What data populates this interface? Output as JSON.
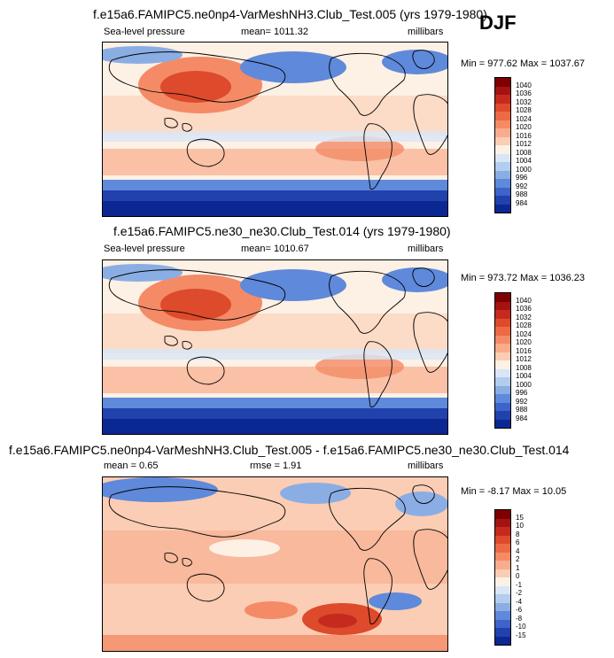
{
  "season": "DJF",
  "panels": [
    {
      "title": "f.e15a6.FAMIPC5.ne0np4-VarMeshNH3.Club_Test.005 (yrs 1979-1980)",
      "left_label": "Sea-level pressure",
      "center_label": "mean= 1011.32",
      "right_label": "millibars",
      "minmax": "Min = 977.62 Max = 1037.67"
    },
    {
      "title": "f.e15a6.FAMIPC5.ne30_ne30.Club_Test.014 (yrs 1979-1980)",
      "left_label": "Sea-level pressure",
      "center_label": "mean= 1010.67",
      "right_label": "millibars",
      "minmax": "Min = 973.72 Max = 1036.23"
    },
    {
      "title": "f.e15a6.FAMIPC5.ne0np4-VarMeshNH3.Club_Test.005 - f.e15a6.FAMIPC5.ne30_ne30.Club_Test.014",
      "left_label": "mean =   0.65",
      "center_label": "rmse =   1.91",
      "right_label": "millibars",
      "minmax": "Min =  -8.17 Max =  10.05"
    }
  ],
  "colorbars": {
    "slp": {
      "labels": [
        "1040",
        "1036",
        "1032",
        "1028",
        "1024",
        "1020",
        "1016",
        "1012",
        "1008",
        "1004",
        "1000",
        "996",
        "992",
        "988",
        "984"
      ],
      "colors": [
        "#7f0000",
        "#a31313",
        "#c62a1e",
        "#dd4a2c",
        "#ec6a45",
        "#f48b66",
        "#f8ac8c",
        "#fbcdb4",
        "#fdf0e4",
        "#d8e6f6",
        "#b2cdee",
        "#8aaee4",
        "#5f89da",
        "#3c64c9",
        "#2141ad",
        "#0b2792"
      ]
    },
    "diff": {
      "labels": [
        "15",
        "10",
        "8",
        "6",
        "4",
        "2",
        "1",
        "0",
        "-1",
        "-2",
        "-4",
        "-6",
        "-8",
        "-10",
        "-15"
      ],
      "colors": [
        "#7f0000",
        "#a31313",
        "#c62a1e",
        "#dd4a2c",
        "#ec6a45",
        "#f48b66",
        "#f8ac8c",
        "#fbcdb4",
        "#fdf0e4",
        "#d8e6f6",
        "#b2cdee",
        "#8aaee4",
        "#5f89da",
        "#3c64c9",
        "#2141ad",
        "#0b2792"
      ]
    }
  },
  "chart_data": [
    {
      "type": "heatmap",
      "title": "f.e15a6.FAMIPC5.ne0np4-VarMeshNH3.Club_Test.005 (yrs 1979-1980)",
      "variable": "Sea-level pressure",
      "units": "millibars",
      "season": "DJF",
      "mean": 1011.32,
      "min": 977.62,
      "max": 1037.67,
      "contour_levels": [
        984,
        988,
        992,
        996,
        1000,
        1004,
        1008,
        1012,
        1016,
        1020,
        1024,
        1028,
        1032,
        1036,
        1040
      ]
    },
    {
      "type": "heatmap",
      "title": "f.e15a6.FAMIPC5.ne30_ne30.Club_Test.014 (yrs 1979-1980)",
      "variable": "Sea-level pressure",
      "units": "millibars",
      "season": "DJF",
      "mean": 1010.67,
      "min": 973.72,
      "max": 1036.23,
      "contour_levels": [
        984,
        988,
        992,
        996,
        1000,
        1004,
        1008,
        1012,
        1016,
        1020,
        1024,
        1028,
        1032,
        1036,
        1040
      ]
    },
    {
      "type": "heatmap",
      "title": "f.e15a6.FAMIPC5.ne0np4-VarMeshNH3.Club_Test.005 - f.e15a6.FAMIPC5.ne30_ne30.Club_Test.014",
      "units": "millibars",
      "season": "DJF",
      "mean": 0.65,
      "rmse": 1.91,
      "min": -8.17,
      "max": 10.05,
      "contour_levels": [
        -15,
        -10,
        -8,
        -6,
        -4,
        -2,
        -1,
        0,
        1,
        2,
        4,
        6,
        8,
        10,
        15
      ]
    }
  ]
}
